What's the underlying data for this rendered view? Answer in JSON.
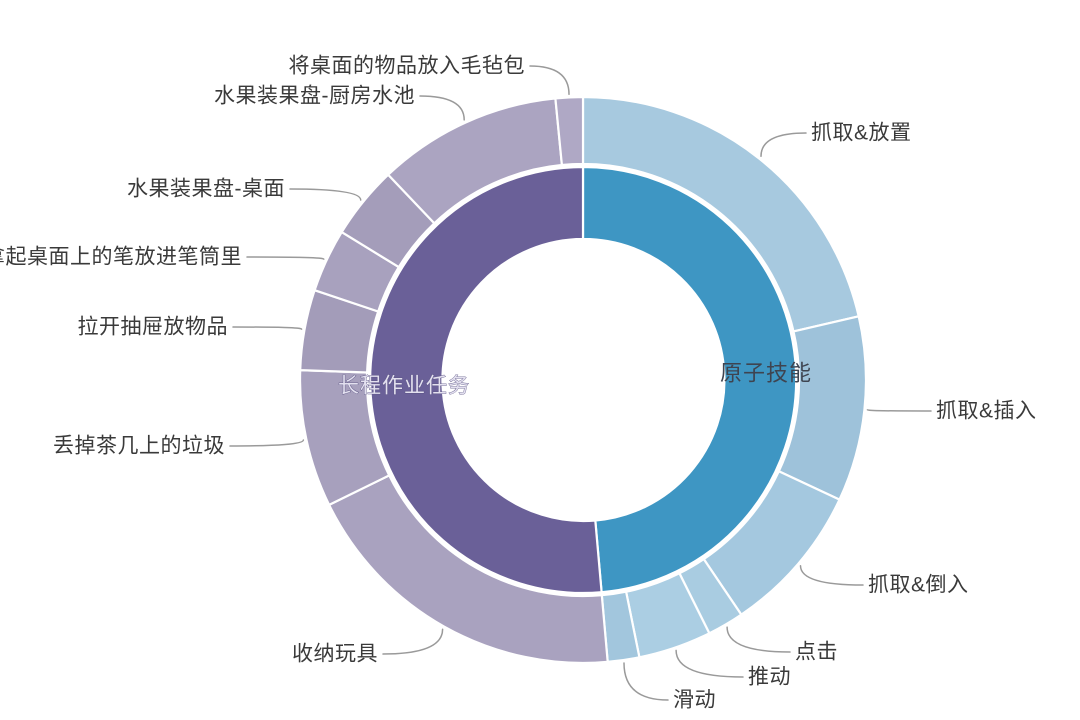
{
  "chart_data": {
    "type": "sunburst",
    "title": "",
    "background": "#ffffff",
    "units": "degrees clockwise from 12 o'clock (estimated from pixels; no numeric labels shown in chart)",
    "inner_ring": [
      {
        "id": "atomic-skills",
        "label": "原子技能",
        "start": 0,
        "end": 175,
        "pct_est": 48.6,
        "color": "#3E96C3",
        "label_color": "#3e4450"
      },
      {
        "id": "long-horizon-tasks",
        "label": "长程作业任务",
        "start": 175,
        "end": 360,
        "pct_est": 51.4,
        "color": "#6A6098",
        "label_color": "#e3e0ef"
      }
    ],
    "outer_ring": [
      {
        "label": "抓取&放置",
        "parent": "原子技能",
        "start": 0,
        "end": 77,
        "pct_est": 21.4,
        "color": "#A7C9DF"
      },
      {
        "label": "抓取&插入",
        "parent": "原子技能",
        "start": 77,
        "end": 115,
        "pct_est": 10.6,
        "color": "#9EC2DA"
      },
      {
        "label": "抓取&倒入",
        "parent": "原子技能",
        "start": 115,
        "end": 146,
        "pct_est": 8.6,
        "color": "#A4C8DF"
      },
      {
        "label": "点击",
        "parent": "原子技能",
        "start": 146,
        "end": 153.5,
        "pct_est": 2.1,
        "color": "#A9CCE1"
      },
      {
        "label": "推动",
        "parent": "原子技能",
        "start": 153.5,
        "end": 168.5,
        "pct_est": 4.2,
        "color": "#ABCEE3"
      },
      {
        "label": "滑动",
        "parent": "原子技能",
        "start": 168.5,
        "end": 175,
        "pct_est": 1.8,
        "color": "#A2C6DD"
      },
      {
        "label": "收纳玩具",
        "parent": "长程作业任务",
        "start": 175,
        "end": 243.8,
        "pct_est": 19.1,
        "color": "#A9A2BF"
      },
      {
        "label": "丢掉茶几上的垃圾",
        "parent": "长程作业任务",
        "start": 243.8,
        "end": 272,
        "pct_est": 7.8,
        "color": "#A7A0BD"
      },
      {
        "label": "拉开抽屉放物品",
        "parent": "长程作业任务",
        "start": 272,
        "end": 288.5,
        "pct_est": 4.6,
        "color": "#A39CB9"
      },
      {
        "label": "拿起桌面上的笔放进笔筒里",
        "parent": "长程作业任务",
        "start": 288.5,
        "end": 301.5,
        "pct_est": 3.6,
        "color": "#A8A1BE"
      },
      {
        "label": "水果装果盘-桌面",
        "parent": "长程作业任务",
        "start": 301.5,
        "end": 316.5,
        "pct_est": 4.2,
        "color": "#A49DBA"
      },
      {
        "label": "水果装果盘-厨房水池",
        "parent": "长程作业任务",
        "start": 316.5,
        "end": 354.4,
        "pct_est": 10.5,
        "color": "#ABA4C1"
      },
      {
        "label": "将桌面的物品放入毛毡包",
        "parent": "长程作业任务",
        "start": 354.4,
        "end": 360,
        "pct_est": 1.6,
        "color": "#AFA8C5"
      }
    ],
    "leader_line_color": "#9a9a9a",
    "label_text_color": "#3a3a3a",
    "legend": "none",
    "grid": "off"
  }
}
